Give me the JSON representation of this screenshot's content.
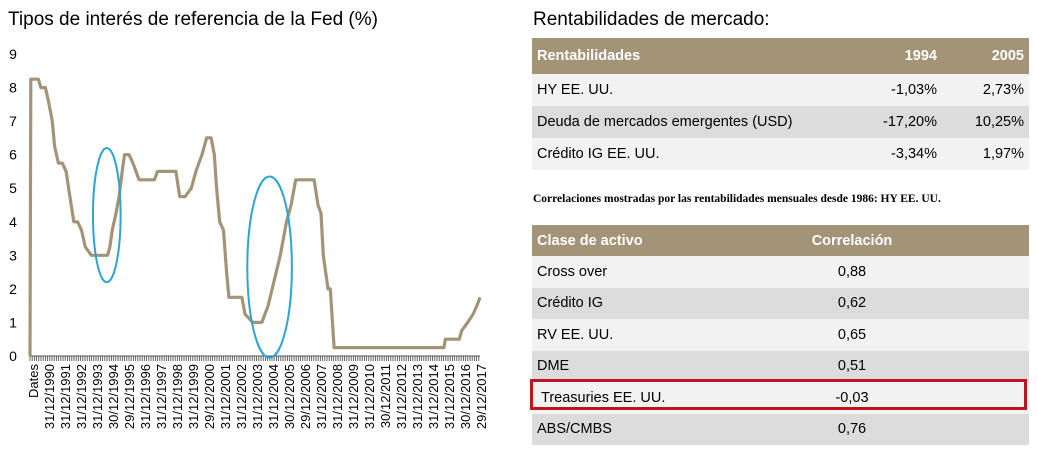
{
  "chart_data": {
    "type": "line",
    "title": "Tipos de interés de referencia de la Fed (%)",
    "ylim": [
      0,
      9
    ],
    "yticks": [
      0,
      1,
      2,
      3,
      4,
      5,
      6,
      7,
      8,
      9
    ],
    "xlim": [
      1989.0,
      2018.3
    ],
    "xtick_first_label": "Dates",
    "xtick_labels": [
      "31/12/1990",
      "31/12/1991",
      "31/12/1992",
      "31/12/1993",
      "30/12/1994",
      "29/12/1995",
      "31/12/1996",
      "31/12/1997",
      "31/12/1998",
      "31/12/1999",
      "29/12/2000",
      "31/12/2001",
      "31/12/2002",
      "31/12/2003",
      "31/12/2004",
      "30/12/2005",
      "29/12/2006",
      "31/12/2007",
      "31/12/2008",
      "31/12/2009",
      "31/12/2010",
      "30/12/2011",
      "31/12/2012",
      "31/12/2013",
      "31/12/2014",
      "31/12/2015",
      "30/12/2016",
      "29/12/2017"
    ],
    "color": "#a39478",
    "series": [
      {
        "x": [
          1989.0,
          1989.05,
          1989.25,
          1989.55,
          1989.7,
          1990.0,
          1990.2,
          1990.45,
          1990.6,
          1990.85,
          1991.1,
          1991.35,
          1991.6,
          1991.85,
          1992.1,
          1992.35,
          1992.6,
          1993.0,
          1993.5,
          1994.05,
          1994.2,
          1994.35,
          1994.6,
          1994.8,
          1995.0,
          1995.15,
          1995.45,
          1995.7,
          1995.9,
          1996.1,
          1996.6,
          1997.1,
          1997.3,
          1997.7,
          1998.0,
          1998.5,
          1998.75,
          1998.9,
          1999.1,
          1999.5,
          1999.8,
          2000.0,
          2000.2,
          2000.5,
          2000.8,
          2001.0,
          2001.15,
          2001.35,
          2001.6,
          2001.8,
          2001.95,
          2002.3,
          2002.8,
          2003.0,
          2003.5,
          2003.8,
          2004.1,
          2004.5,
          2004.9,
          2005.3,
          2005.7,
          2006.0,
          2006.3,
          2006.6,
          2007.0,
          2007.5,
          2007.75,
          2007.95,
          2008.1,
          2008.4,
          2008.55,
          2008.8,
          2009.0,
          2010.0,
          2012.0,
          2014.0,
          2015.0,
          2015.95,
          2016.05,
          2016.6,
          2016.95,
          2017.1,
          2017.5,
          2017.85,
          2018.1,
          2018.3
        ],
        "y": [
          0,
          8.25,
          8.25,
          8.25,
          8.0,
          8.0,
          7.6,
          7.0,
          6.25,
          5.75,
          5.75,
          5.5,
          4.75,
          4.0,
          4.0,
          3.75,
          3.25,
          3.0,
          3.0,
          3.0,
          3.25,
          3.75,
          4.25,
          4.75,
          5.5,
          6.0,
          6.0,
          5.75,
          5.5,
          5.25,
          5.25,
          5.25,
          5.5,
          5.5,
          5.5,
          5.5,
          4.75,
          4.75,
          4.75,
          5.0,
          5.5,
          5.75,
          6.0,
          6.5,
          6.5,
          6.0,
          5.0,
          4.0,
          3.75,
          2.5,
          1.75,
          1.75,
          1.75,
          1.25,
          1.0,
          1.0,
          1.0,
          1.5,
          2.25,
          3.0,
          4.0,
          4.5,
          5.25,
          5.25,
          5.25,
          5.25,
          4.5,
          4.25,
          3.0,
          2.0,
          2.0,
          0.25,
          0.25,
          0.25,
          0.25,
          0.25,
          0.25,
          0.25,
          0.5,
          0.5,
          0.5,
          0.75,
          1.0,
          1.25,
          1.5,
          1.75
        ]
      }
    ],
    "annotations": [
      {
        "shape": "ellipse",
        "cx": 1994.0,
        "cy": 4.2,
        "rx": 0.9,
        "ry": 2.0,
        "color": "#2ea3d6"
      },
      {
        "shape": "ellipse",
        "cx": 2004.6,
        "cy": 2.65,
        "rx": 1.45,
        "ry": 2.7,
        "color": "#2ea3d6"
      }
    ]
  },
  "right": {
    "title": "Rentabilidades de mercado:",
    "returns_table": {
      "headers": [
        "Rentabilidades",
        "1994",
        "2005"
      ],
      "rows": [
        [
          "HY EE. UU.",
          "-1,03%",
          "2,73%"
        ],
        [
          "Deuda de mercados emergentes (USD)",
          "-17,20%",
          "10,25%"
        ],
        [
          "Crédito IG EE. UU.",
          "-3,34%",
          "1,97%"
        ]
      ]
    },
    "note": "Correlaciones mostradas por las rentabilidades mensuales desde 1986: HY EE. UU.",
    "corr_table": {
      "headers": [
        "Clase de activo",
        "Correlación"
      ],
      "rows": [
        [
          "Cross over",
          "0,88"
        ],
        [
          "Crédito IG",
          "0,62"
        ],
        [
          "RV EE. UU.",
          "0,65"
        ],
        [
          "DME",
          "0,51"
        ],
        [
          "Treasuries EE. UU.",
          "-0,03"
        ],
        [
          "ABS/CMBS",
          "0,76"
        ]
      ],
      "highlight_color": "#c0141c"
    }
  }
}
